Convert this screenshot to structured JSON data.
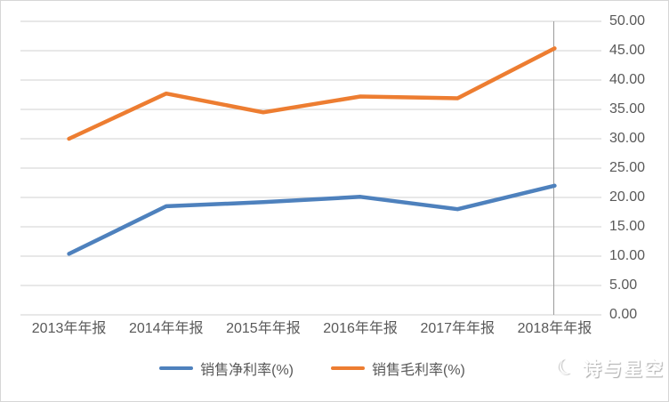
{
  "chart_data": {
    "type": "line",
    "categories": [
      "2013年年报",
      "2014年年报",
      "2015年年报",
      "2016年年报",
      "2017年年报",
      "2018年年报"
    ],
    "series": [
      {
        "name": "销售净利率(%)",
        "color": "#4E81BD",
        "values": [
          10.4,
          18.5,
          19.2,
          20.1,
          18.0,
          22.0
        ]
      },
      {
        "name": "销售毛利率(%)",
        "color": "#ED7D31",
        "values": [
          30.0,
          37.7,
          34.5,
          37.2,
          36.9,
          45.4
        ]
      }
    ],
    "title": "",
    "xlabel": "",
    "ylabel": "",
    "ylim": [
      0,
      50
    ],
    "ytick_step": 5,
    "ytick_labels": [
      "0.00",
      "5.00",
      "10.00",
      "15.00",
      "20.00",
      "25.00",
      "30.00",
      "35.00",
      "40.00",
      "45.00",
      "50.00"
    ],
    "y_axis_side": "right",
    "grid": true,
    "gridline_color": "#D9D9D9",
    "axis_text_color": "#595959",
    "vertical_axis_line_color": "#9b9b9b",
    "legend_position": "bottom"
  },
  "watermark": {
    "text": "诗与星空",
    "icon": "crescent-moon-logo"
  }
}
